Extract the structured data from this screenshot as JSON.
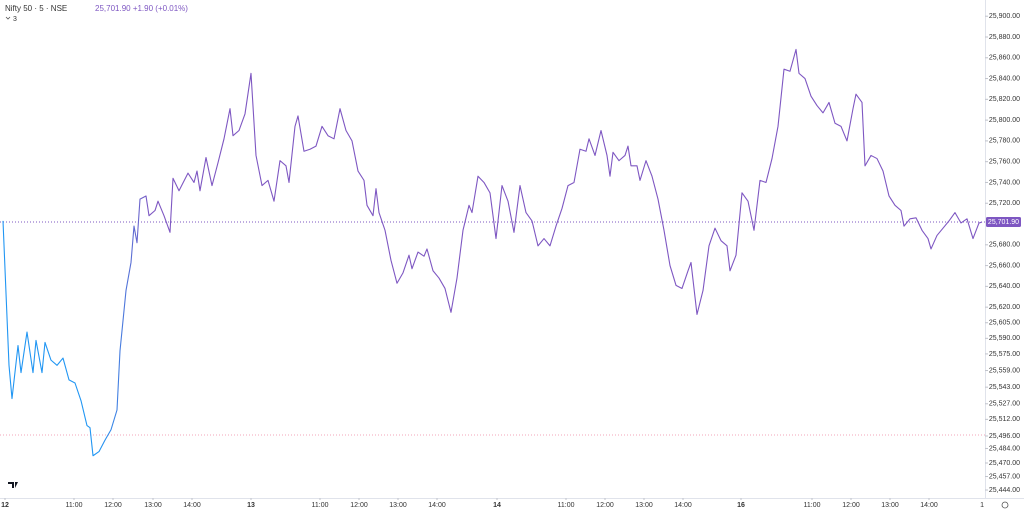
{
  "chart_data": {
    "type": "line",
    "symbol": "Nifty 50 · 5 · NSE",
    "quote": "25,701.90 +1.90 (+0.01%)",
    "indicator_count": "3",
    "corner_text": "1",
    "x": [
      3,
      9,
      12,
      18,
      21,
      27,
      33,
      36,
      42,
      45,
      51,
      57,
      63,
      69,
      75,
      81,
      87,
      90,
      93,
      99,
      105,
      111,
      117,
      120,
      126,
      131,
      134,
      137,
      140,
      146,
      149,
      155,
      158,
      164,
      170,
      173,
      179,
      188,
      194,
      197,
      200,
      206,
      212,
      218,
      224,
      230,
      233,
      239,
      245,
      251,
      256,
      262,
      268,
      274,
      280,
      286,
      289,
      295,
      298,
      304,
      310,
      316,
      322,
      328,
      334,
      340,
      346,
      352,
      358,
      364,
      367,
      373,
      376,
      379,
      385,
      391,
      397,
      403,
      409,
      412,
      418,
      424,
      427,
      433,
      439,
      445,
      451,
      457,
      463,
      469,
      472,
      478,
      484,
      490,
      496,
      502,
      508,
      514,
      520,
      526,
      532,
      538,
      544,
      550,
      556,
      562,
      568,
      574,
      580,
      586,
      589,
      595,
      601,
      607,
      610,
      613,
      619,
      625,
      628,
      631,
      637,
      640,
      646,
      652,
      658,
      664,
      670,
      676,
      682,
      688,
      691,
      697,
      703,
      709,
      715,
      721,
      727,
      730,
      736,
      742,
      748,
      754,
      760,
      766,
      772,
      778,
      784,
      790,
      796,
      799,
      805,
      811,
      817,
      823,
      829,
      835,
      841,
      847,
      853,
      856,
      862,
      865,
      871,
      877,
      883,
      889,
      895,
      901,
      904,
      910,
      916,
      922,
      928,
      931,
      937,
      943,
      949,
      955,
      961,
      967,
      973,
      979,
      982
    ],
    "series": [
      {
        "name": "Nifty 50",
        "colors": [
          "#2196f3",
          "#7e57c2"
        ],
        "values": [
          25703,
          25564,
          25532,
          25583,
          25557,
          25596,
          25557,
          25588,
          25557,
          25586,
          25569,
          25564,
          25571,
          25550,
          25547,
          25530,
          25506,
          25504,
          25477,
          25481,
          25492,
          25502,
          25521,
          25578,
          25636,
          25663,
          25698,
          25682,
          25724,
          25727,
          25708,
          25713,
          25722,
          25708,
          25692,
          25744,
          25732,
          25749,
          25740,
          25751,
          25732,
          25764,
          25737,
          25759,
          25782,
          25811,
          25785,
          25790,
          25806,
          25845,
          25766,
          25737,
          25742,
          25722,
          25761,
          25756,
          25740,
          25794,
          25804,
          25770,
          25772,
          25775,
          25794,
          25785,
          25782,
          25811,
          25790,
          25780,
          25751,
          25742,
          25718,
          25708,
          25734,
          25711,
          25694,
          25665,
          25643,
          25653,
          25670,
          25657,
          25673,
          25669,
          25676,
          25655,
          25648,
          25638,
          25615,
          25648,
          25694,
          25718,
          25711,
          25746,
          25740,
          25730,
          25686,
          25737,
          25722,
          25692,
          25737,
          25711,
          25703,
          25679,
          25686,
          25679,
          25698,
          25715,
          25737,
          25740,
          25772,
          25770,
          25782,
          25766,
          25790,
          25766,
          25746,
          25769,
          25761,
          25766,
          25775,
          25756,
          25756,
          25742,
          25761,
          25746,
          25724,
          25694,
          25660,
          25641,
          25638,
          25655,
          25663,
          25613,
          25636,
          25679,
          25696,
          25684,
          25679,
          25655,
          25670,
          25730,
          25722,
          25694,
          25742,
          25740,
          25763,
          25794,
          25849,
          25847,
          25868,
          25845,
          25840,
          25823,
          25814,
          25807,
          25817,
          25797,
          25794,
          25780,
          25811,
          25825,
          25817,
          25756,
          25766,
          25763,
          25751,
          25727,
          25718,
          25713,
          25698,
          25705,
          25706,
          25694,
          25686,
          25676,
          25689,
          25696,
          25703,
          25711,
          25701,
          25705,
          25686,
          25701,
          25701.9
        ]
      }
    ],
    "xlim": [
      0,
      985
    ],
    "xticks": [
      {
        "value": 5,
        "label": "12"
      },
      {
        "value": 74,
        "label": "11:00"
      },
      {
        "value": 113,
        "label": "12:00"
      },
      {
        "value": 153,
        "label": "13:00"
      },
      {
        "value": 192,
        "label": "14:00"
      },
      {
        "value": 251,
        "label": "13"
      },
      {
        "value": 320,
        "label": "11:00"
      },
      {
        "value": 359,
        "label": "12:00"
      },
      {
        "value": 398,
        "label": "13:00"
      },
      {
        "value": 437,
        "label": "14:00"
      },
      {
        "value": 497,
        "label": "14"
      },
      {
        "value": 566,
        "label": "11:00"
      },
      {
        "value": 605,
        "label": "12:00"
      },
      {
        "value": 644,
        "label": "13:00"
      },
      {
        "value": 683,
        "label": "14:00"
      },
      {
        "value": 741,
        "label": "16"
      },
      {
        "value": 812,
        "label": "11:00"
      },
      {
        "value": 851,
        "label": "12:00"
      },
      {
        "value": 890,
        "label": "13:00"
      },
      {
        "value": 929,
        "label": "14:00"
      }
    ],
    "day_ticks": [
      0,
      5,
      10,
      15
    ],
    "ylim": [
      25434.4,
      25915.6
    ],
    "yticks": [
      {
        "value": 25900,
        "label": "25,900.00"
      },
      {
        "value": 25880,
        "label": "25,880.00"
      },
      {
        "value": 25860,
        "label": "25,860.00"
      },
      {
        "value": 25840,
        "label": "25,840.00"
      },
      {
        "value": 25820,
        "label": "25,820.00"
      },
      {
        "value": 25800,
        "label": "25,800.00"
      },
      {
        "value": 25780,
        "label": "25,780.00"
      },
      {
        "value": 25760,
        "label": "25,760.00"
      },
      {
        "value": 25740,
        "label": "25,740.00"
      },
      {
        "value": 25720,
        "label": "25,720.00"
      },
      {
        "value": 25680,
        "label": "25,680.00"
      },
      {
        "value": 25660,
        "label": "25,660.00"
      },
      {
        "value": 25640,
        "label": "25,640.00"
      },
      {
        "value": 25620,
        "label": "25,620.00"
      },
      {
        "value": 25605,
        "label": "25,605.00"
      },
      {
        "value": 25590,
        "label": "25,590.00"
      },
      {
        "value": 25575,
        "label": "25,575.00"
      },
      {
        "value": 25559,
        "label": "25,559.00"
      },
      {
        "value": 25543,
        "label": "25,543.00"
      },
      {
        "value": 25527,
        "label": "25,527.00"
      },
      {
        "value": 25512,
        "label": "25,512.00"
      },
      {
        "value": 25496,
        "label": "25,496.00"
      },
      {
        "value": 25484,
        "label": "25,484.00"
      },
      {
        "value": 25470,
        "label": "25,470.00"
      },
      {
        "value": 25457,
        "label": "25,457.00"
      },
      {
        "value": 25444,
        "label": "25,444.00"
      }
    ],
    "last_price": {
      "value": 25701.9,
      "label": "25,701.90",
      "color": "#7e57c2"
    },
    "reference_line": {
      "value": 25497,
      "color": "#f3a6b8"
    },
    "grid": false
  }
}
